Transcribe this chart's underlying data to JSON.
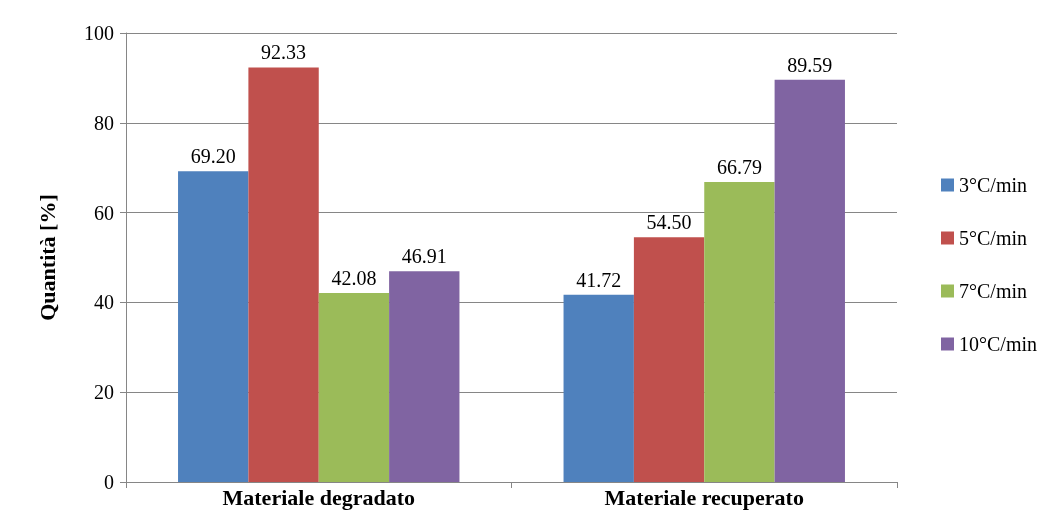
{
  "chart_data": {
    "type": "bar",
    "ylabel": "Quantità [%]",
    "categories": [
      "Materiale degradato",
      "Materiale recuperato"
    ],
    "series": [
      {
        "name": "3°C/min",
        "color": "#4f81bd",
        "values": [
          69.2,
          41.72
        ],
        "value_labels": [
          "69.20",
          "41.72"
        ]
      },
      {
        "name": "5°C/min",
        "color": "#c0504d",
        "values": [
          92.33,
          54.5
        ],
        "value_labels": [
          "92.33",
          "54.50"
        ]
      },
      {
        "name": "7°C/min",
        "color": "#9bbb59",
        "values": [
          42.08,
          66.79
        ],
        "value_labels": [
          "42.08",
          "66.79"
        ]
      },
      {
        "name": "10°C/min",
        "color": "#8064a2",
        "values": [
          46.91,
          89.59
        ],
        "value_labels": [
          "46.91",
          "89.59"
        ]
      }
    ],
    "ylim": [
      0,
      100
    ],
    "yticks": [
      0,
      20,
      40,
      60,
      80,
      100
    ],
    "grid": "y",
    "legend": "right"
  }
}
